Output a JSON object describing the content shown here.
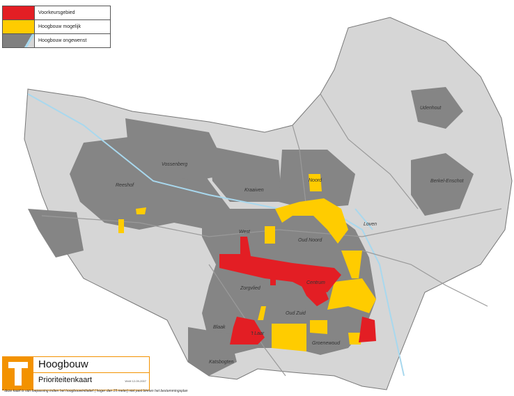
{
  "legend": {
    "items": [
      {
        "label": "Voorkeursgebied",
        "color": "#e31e24"
      },
      {
        "label": "Hoogbouw mogelijk",
        "color": "#ffcc00"
      },
      {
        "label": "Hoogbouw ongewenst",
        "color": "#808080"
      }
    ]
  },
  "title_block": {
    "logo_letter": "T",
    "title": "Hoogbouw",
    "subtitle": "Prioriteitenkaart",
    "date": "WvM 12-09-2007",
    "accent_color": "#f39200"
  },
  "footnote": "* deze kaart is van toepassing indien het hoogbouwinitiatief ( hoger dan 15 meter) niet past binnen het bestemmingsplan",
  "map": {
    "colors": {
      "base": "#d6d6d6",
      "built": "#858585",
      "water": "#a8d8ee",
      "road": "#9a9a9a"
    },
    "places": [
      "Udenhout",
      "Berkel-Enschot",
      "Vossenberg",
      "Reeshof",
      "Kraaiven",
      "Noord",
      "Loven",
      "West",
      "Oud Noord",
      "Centrum",
      "Zorgvlied",
      "Oud Zuid",
      "Blaak",
      "'t Laar",
      "Groenewoud",
      "Katsbogten"
    ]
  }
}
